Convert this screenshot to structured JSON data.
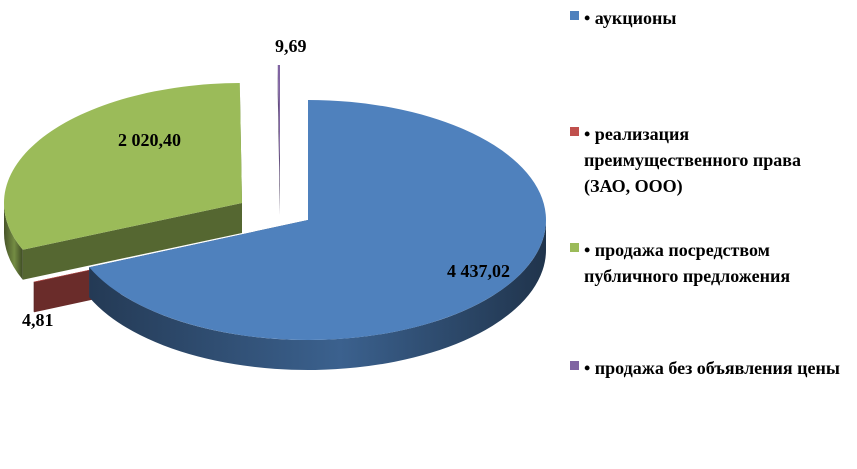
{
  "chart_data": {
    "type": "pie",
    "title": "",
    "series": [
      {
        "name": "• аукционы",
        "value": 4437.02,
        "label": "4 437,02",
        "color": "#4F81BD"
      },
      {
        "name": "• реализация преимущественного права (ЗАО, ООО)",
        "value": 4.81,
        "label": "4,81",
        "color": "#C0504D"
      },
      {
        "name": "• продажа посредством публичного предложения",
        "value": 2020.4,
        "label": "2 020,40",
        "color": "#9BBB59"
      },
      {
        "name": "• продажа без объявления цены",
        "value": 9.69,
        "label": "9,69",
        "color": "#8064A2"
      }
    ],
    "legend_position": "right",
    "exploded": true,
    "three_d": true
  }
}
